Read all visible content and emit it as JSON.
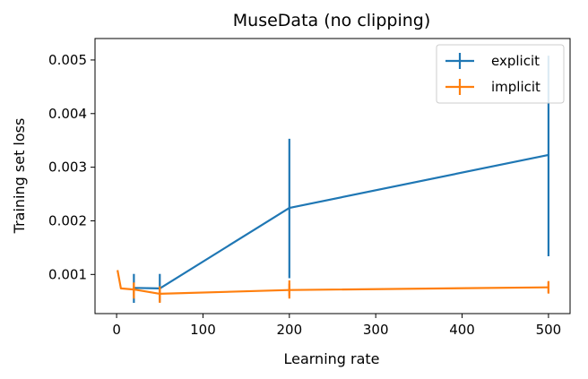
{
  "chart_data": {
    "type": "line",
    "title": "MuseData (no clipping)",
    "xlabel": "Learning rate",
    "ylabel": "Training set loss",
    "xlim": [
      -25,
      525
    ],
    "ylim": [
      0.00027,
      0.0054
    ],
    "xticks": [
      0,
      100,
      200,
      300,
      400,
      500
    ],
    "xtick_labels": [
      "0",
      "100",
      "200",
      "300",
      "400",
      "500"
    ],
    "yticks": [
      0.001,
      0.002,
      0.003,
      0.004,
      0.005
    ],
    "ytick_labels": [
      "0.001",
      "0.002",
      "0.003",
      "0.004",
      "0.005"
    ],
    "grid": false,
    "legend_position": "top-right",
    "series": [
      {
        "name": "explicit",
        "color": "#1f77b4",
        "x": [
          20,
          50,
          200,
          500
        ],
        "y": [
          0.00075,
          0.00074,
          0.00224,
          0.00323
        ],
        "yerr_low": [
          0.00047,
          0.00049,
          0.00093,
          0.00134
        ],
        "yerr_high": [
          0.00101,
          0.00101,
          0.00353,
          0.00508
        ]
      },
      {
        "name": "implicit",
        "color": "#ff7f0e",
        "x": [
          1,
          5,
          20,
          50,
          200,
          500
        ],
        "y": [
          0.00108,
          0.00074,
          0.00072,
          0.00064,
          0.00071,
          0.00076
        ],
        "yerr_low": [
          null,
          null,
          0.00055,
          0.00047,
          0.00055,
          0.00066
        ],
        "yerr_high": [
          null,
          null,
          0.00085,
          0.00078,
          0.00089,
          0.00086
        ]
      }
    ]
  }
}
